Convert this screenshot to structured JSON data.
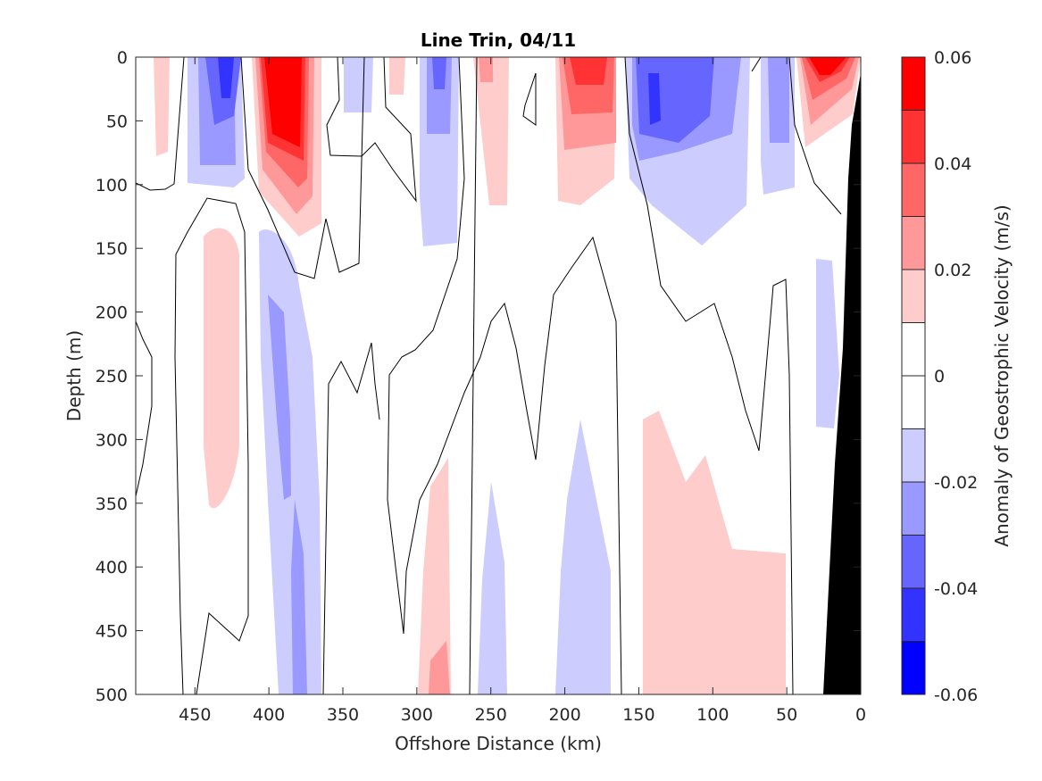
{
  "chart_data": {
    "type": "heatmap",
    "title": "Line Trin, 04/11",
    "xlabel": "Offshore Distance (km)",
    "ylabel": "Depth (m)",
    "colorbar_label": "Anomaly of Geostrophic Velocity (m/s)",
    "xlim": [
      490,
      0
    ],
    "x_reversed": true,
    "ylim": [
      0,
      500
    ],
    "y_reversed": true,
    "xticks": [
      450,
      400,
      350,
      300,
      250,
      200,
      150,
      100,
      50,
      0
    ],
    "yticks": [
      0,
      50,
      100,
      150,
      200,
      250,
      300,
      350,
      400,
      450,
      500
    ],
    "colorbar_ticks": [
      0.06,
      0.04,
      0.02,
      0,
      -0.02,
      -0.04,
      -0.06
    ],
    "contour_levels": [
      -0.06,
      -0.05,
      -0.04,
      -0.03,
      -0.02,
      -0.01,
      0.01,
      0.02,
      0.03,
      0.04,
      0.05,
      0.06
    ],
    "colormap": [
      "#0000ff",
      "#3333ff",
      "#6666ff",
      "#9999ff",
      "#ccccff",
      "#ffffff",
      "#ffcccc",
      "#ff9999",
      "#ff6666",
      "#ff3333",
      "#ff0000"
    ],
    "bathymetry_color": "#000000",
    "features": [
      {
        "sign": "positive",
        "center_km": 385,
        "depth_range_m": [
          0,
          140
        ],
        "peak": 0.06
      },
      {
        "sign": "negative",
        "center_km": 430,
        "depth_range_m": [
          0,
          100
        ],
        "peak": -0.05
      },
      {
        "sign": "positive",
        "center_km": 410,
        "depth_range_m": [
          135,
          355
        ],
        "peak": 0.02
      },
      {
        "sign": "negative",
        "center_km": 375,
        "depth_range_m": [
          130,
          500
        ],
        "peak": -0.03
      },
      {
        "sign": "negative",
        "center_km": 285,
        "depth_range_m": [
          0,
          145
        ],
        "peak": -0.03
      },
      {
        "sign": "positive",
        "center_km": 240,
        "depth_range_m": [
          0,
          115
        ],
        "peak": 0.02
      },
      {
        "sign": "positive",
        "center_km": 185,
        "depth_range_m": [
          0,
          115
        ],
        "peak": 0.04
      },
      {
        "sign": "negative",
        "center_km": 125,
        "depth_range_m": [
          0,
          145
        ],
        "peak": -0.05
      },
      {
        "sign": "positive",
        "center_km": 25,
        "depth_range_m": [
          0,
          60
        ],
        "peak": 0.05
      },
      {
        "sign": "positive",
        "center_km": 285,
        "depth_range_m": [
          325,
          500
        ],
        "peak": 0.02
      },
      {
        "sign": "negative",
        "center_km": 240,
        "depth_range_m": [
          330,
          500
        ],
        "peak": -0.02
      },
      {
        "sign": "negative",
        "center_km": 190,
        "depth_range_m": [
          285,
          500
        ],
        "peak": -0.02
      },
      {
        "sign": "positive",
        "center_km": 100,
        "depth_range_m": [
          270,
          500
        ],
        "peak": 0.02
      },
      {
        "sign": "negative",
        "center_km": 30,
        "depth_range_m": [
          160,
          290
        ],
        "peak": -0.02
      }
    ]
  }
}
